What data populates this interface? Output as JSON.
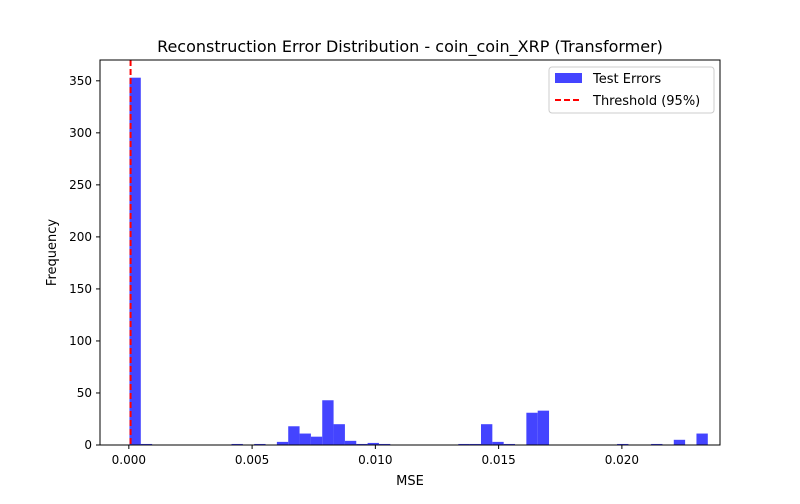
{
  "chart_data": {
    "type": "bar",
    "title": "Reconstruction Error Distribution - coin_coin_XRP (Transformer)",
    "xlabel": "MSE",
    "ylabel": "Frequency",
    "xlim": [
      -0.00117,
      0.02398
    ],
    "ylim": [
      0,
      370
    ],
    "xticks": [
      {
        "value": 0.0,
        "label": "0.000"
      },
      {
        "value": 0.005,
        "label": "0.005"
      },
      {
        "value": 0.01,
        "label": "0.010"
      },
      {
        "value": 0.015,
        "label": "0.015"
      },
      {
        "value": 0.02,
        "label": "0.020"
      }
    ],
    "yticks": [
      {
        "value": 0,
        "label": "0"
      },
      {
        "value": 50,
        "label": "50"
      },
      {
        "value": 100,
        "label": "100"
      },
      {
        "value": 150,
        "label": "150"
      },
      {
        "value": 200,
        "label": "200"
      },
      {
        "value": 250,
        "label": "250"
      },
      {
        "value": 300,
        "label": "300"
      },
      {
        "value": 350,
        "label": "350"
      }
    ],
    "legend_position": "upper right",
    "series": [
      {
        "name": "Test Errors",
        "kind": "histogram",
        "color": "#4444ff",
        "bin_start": 2.5e-05,
        "bin_width": 0.00046,
        "counts": [
          353,
          1,
          0,
          0,
          0,
          0,
          0,
          0,
          0,
          1,
          0,
          1,
          0,
          3,
          18,
          11,
          8,
          43,
          20,
          4,
          1,
          2,
          1,
          0,
          0,
          0,
          0,
          0,
          0,
          1,
          1,
          20,
          3,
          1,
          0,
          31,
          33,
          0,
          0,
          0,
          0,
          0,
          0,
          1,
          0,
          0,
          1,
          0,
          5,
          0,
          11
        ]
      },
      {
        "name": "Threshold (95%)",
        "kind": "vline",
        "color": "#ff0000",
        "x": 7e-05
      }
    ]
  }
}
